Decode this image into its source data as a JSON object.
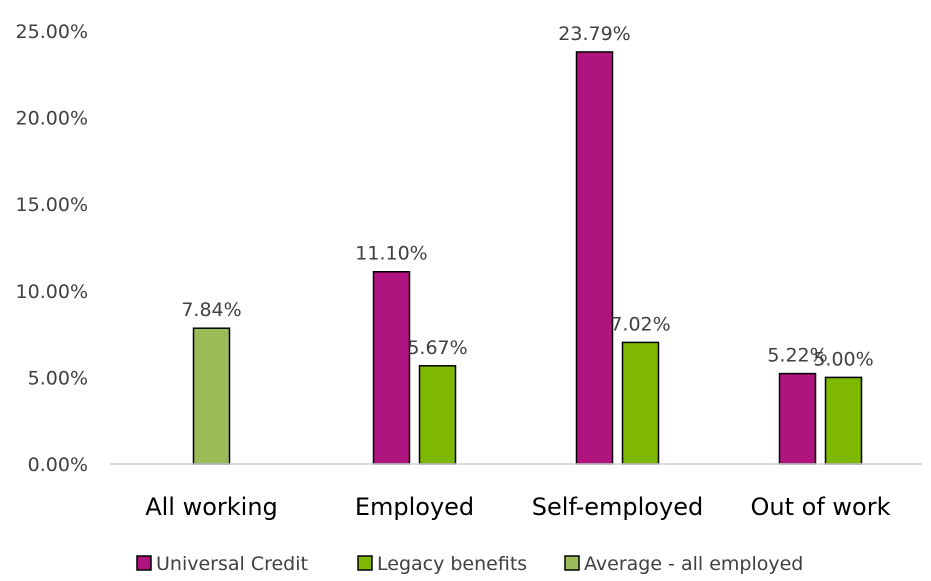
{
  "chart_data": {
    "type": "bar",
    "title": "",
    "xlabel": "",
    "ylabel": "",
    "ylim": [
      0,
      0.25
    ],
    "y_ticks": [
      "0.00%",
      "5.00%",
      "10.00%",
      "15.00%",
      "20.00%",
      "25.00%"
    ],
    "categories": [
      "All working",
      "Employed",
      "Self-employed",
      "Out of work"
    ],
    "series": [
      {
        "name": "Universal Credit",
        "color": "#B0157F",
        "values": [
          null,
          0.111,
          0.2379,
          0.0522
        ],
        "labels": [
          "",
          "11.10%",
          "23.79%",
          "5.22%"
        ]
      },
      {
        "name": "Legacy benefits",
        "color": "#7EB800",
        "values": [
          null,
          0.0567,
          0.0702,
          0.05
        ],
        "labels": [
          "",
          "5.67%",
          "7.02%",
          "5.00%"
        ]
      },
      {
        "name": "Average - all employed",
        "color": "#9BBB59",
        "values": [
          0.0784,
          null,
          null,
          null
        ],
        "labels": [
          "7.84%",
          "",
          "",
          ""
        ]
      }
    ],
    "grid": false,
    "legend_position": "bottom"
  }
}
